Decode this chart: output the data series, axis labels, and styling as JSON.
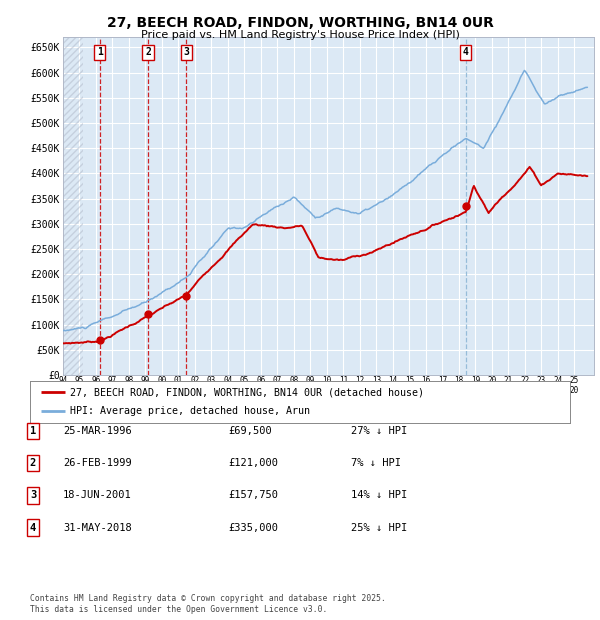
{
  "title": "27, BEECH ROAD, FINDON, WORTHING, BN14 0UR",
  "subtitle": "Price paid vs. HM Land Registry's House Price Index (HPI)",
  "ylim": [
    0,
    670000
  ],
  "xlim_start": 1994.0,
  "xlim_end": 2026.2,
  "yticks": [
    0,
    50000,
    100000,
    150000,
    200000,
    250000,
    300000,
    350000,
    400000,
    450000,
    500000,
    550000,
    600000,
    650000
  ],
  "ytick_labels": [
    "£0",
    "£50K",
    "£100K",
    "£150K",
    "£200K",
    "£250K",
    "£300K",
    "£350K",
    "£400K",
    "£450K",
    "£500K",
    "£550K",
    "£600K",
    "£650K"
  ],
  "fig_bg_color": "#ffffff",
  "plot_bg_color": "#dce9f5",
  "grid_color": "#ffffff",
  "hpi_line_color": "#7aaddb",
  "price_line_color": "#cc0000",
  "marker_color": "#cc0000",
  "vline_color_red": "#cc0000",
  "vline_color_blue": "#8ab4d4",
  "transactions": [
    {
      "label": "1",
      "date_num": 1996.23,
      "price": 69500,
      "vline": "red"
    },
    {
      "label": "2",
      "date_num": 1999.16,
      "price": 121000,
      "vline": "red"
    },
    {
      "label": "3",
      "date_num": 2001.47,
      "price": 157750,
      "vline": "red"
    },
    {
      "label": "4",
      "date_num": 2018.42,
      "price": 335000,
      "vline": "blue"
    }
  ],
  "legend_entries": [
    {
      "label": "27, BEECH ROAD, FINDON, WORTHING, BN14 0UR (detached house)",
      "color": "#cc0000"
    },
    {
      "label": "HPI: Average price, detached house, Arun",
      "color": "#7aaddb"
    }
  ],
  "table_rows": [
    {
      "num": "1",
      "date": "25-MAR-1996",
      "price": "£69,500",
      "pct": "27% ↓ HPI"
    },
    {
      "num": "2",
      "date": "26-FEB-1999",
      "price": "£121,000",
      "pct": "7% ↓ HPI"
    },
    {
      "num": "3",
      "date": "18-JUN-2001",
      "price": "£157,750",
      "pct": "14% ↓ HPI"
    },
    {
      "num": "4",
      "date": "31-MAY-2018",
      "price": "£335,000",
      "pct": "25% ↓ HPI"
    }
  ],
  "footnote": "Contains HM Land Registry data © Crown copyright and database right 2025.\nThis data is licensed under the Open Government Licence v3.0."
}
